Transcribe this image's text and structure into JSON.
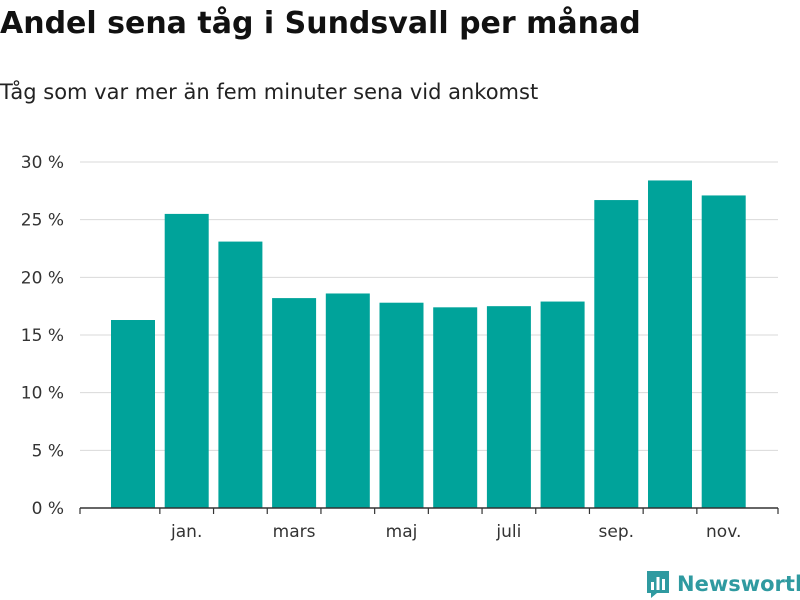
{
  "chart_data": {
    "type": "bar",
    "title": "Andel sena tåg i Sundsvall per månad",
    "subtitle": "Tåg som var mer än fem minuter sena vid ankomst",
    "bars": [
      16.3,
      25.5,
      23.1,
      18.2,
      18.6,
      17.8,
      17.4,
      17.5,
      17.9,
      26.7,
      28.4,
      27.1
    ],
    "x_tick_labels": [
      {
        "label": "jan.",
        "at_bar": 1
      },
      {
        "label": "mars",
        "at_bar": 3
      },
      {
        "label": "maj",
        "at_bar": 5
      },
      {
        "label": "juli",
        "at_bar": 7
      },
      {
        "label": "sep.",
        "at_bar": 9
      },
      {
        "label": "nov.",
        "at_bar": 11
      }
    ],
    "y_ticks": [
      0,
      5,
      10,
      15,
      20,
      25,
      30
    ],
    "y_tick_labels": [
      "0 %",
      "5 %",
      "10 %",
      "15 %",
      "20 %",
      "25 %",
      "30 %"
    ],
    "ylim": [
      0,
      30
    ],
    "grid": true,
    "bar_color": "#00a39a"
  },
  "brand": {
    "name": "Newsworthy",
    "icon": "newsworthy-logo-icon",
    "color": "#2f9aa0"
  }
}
